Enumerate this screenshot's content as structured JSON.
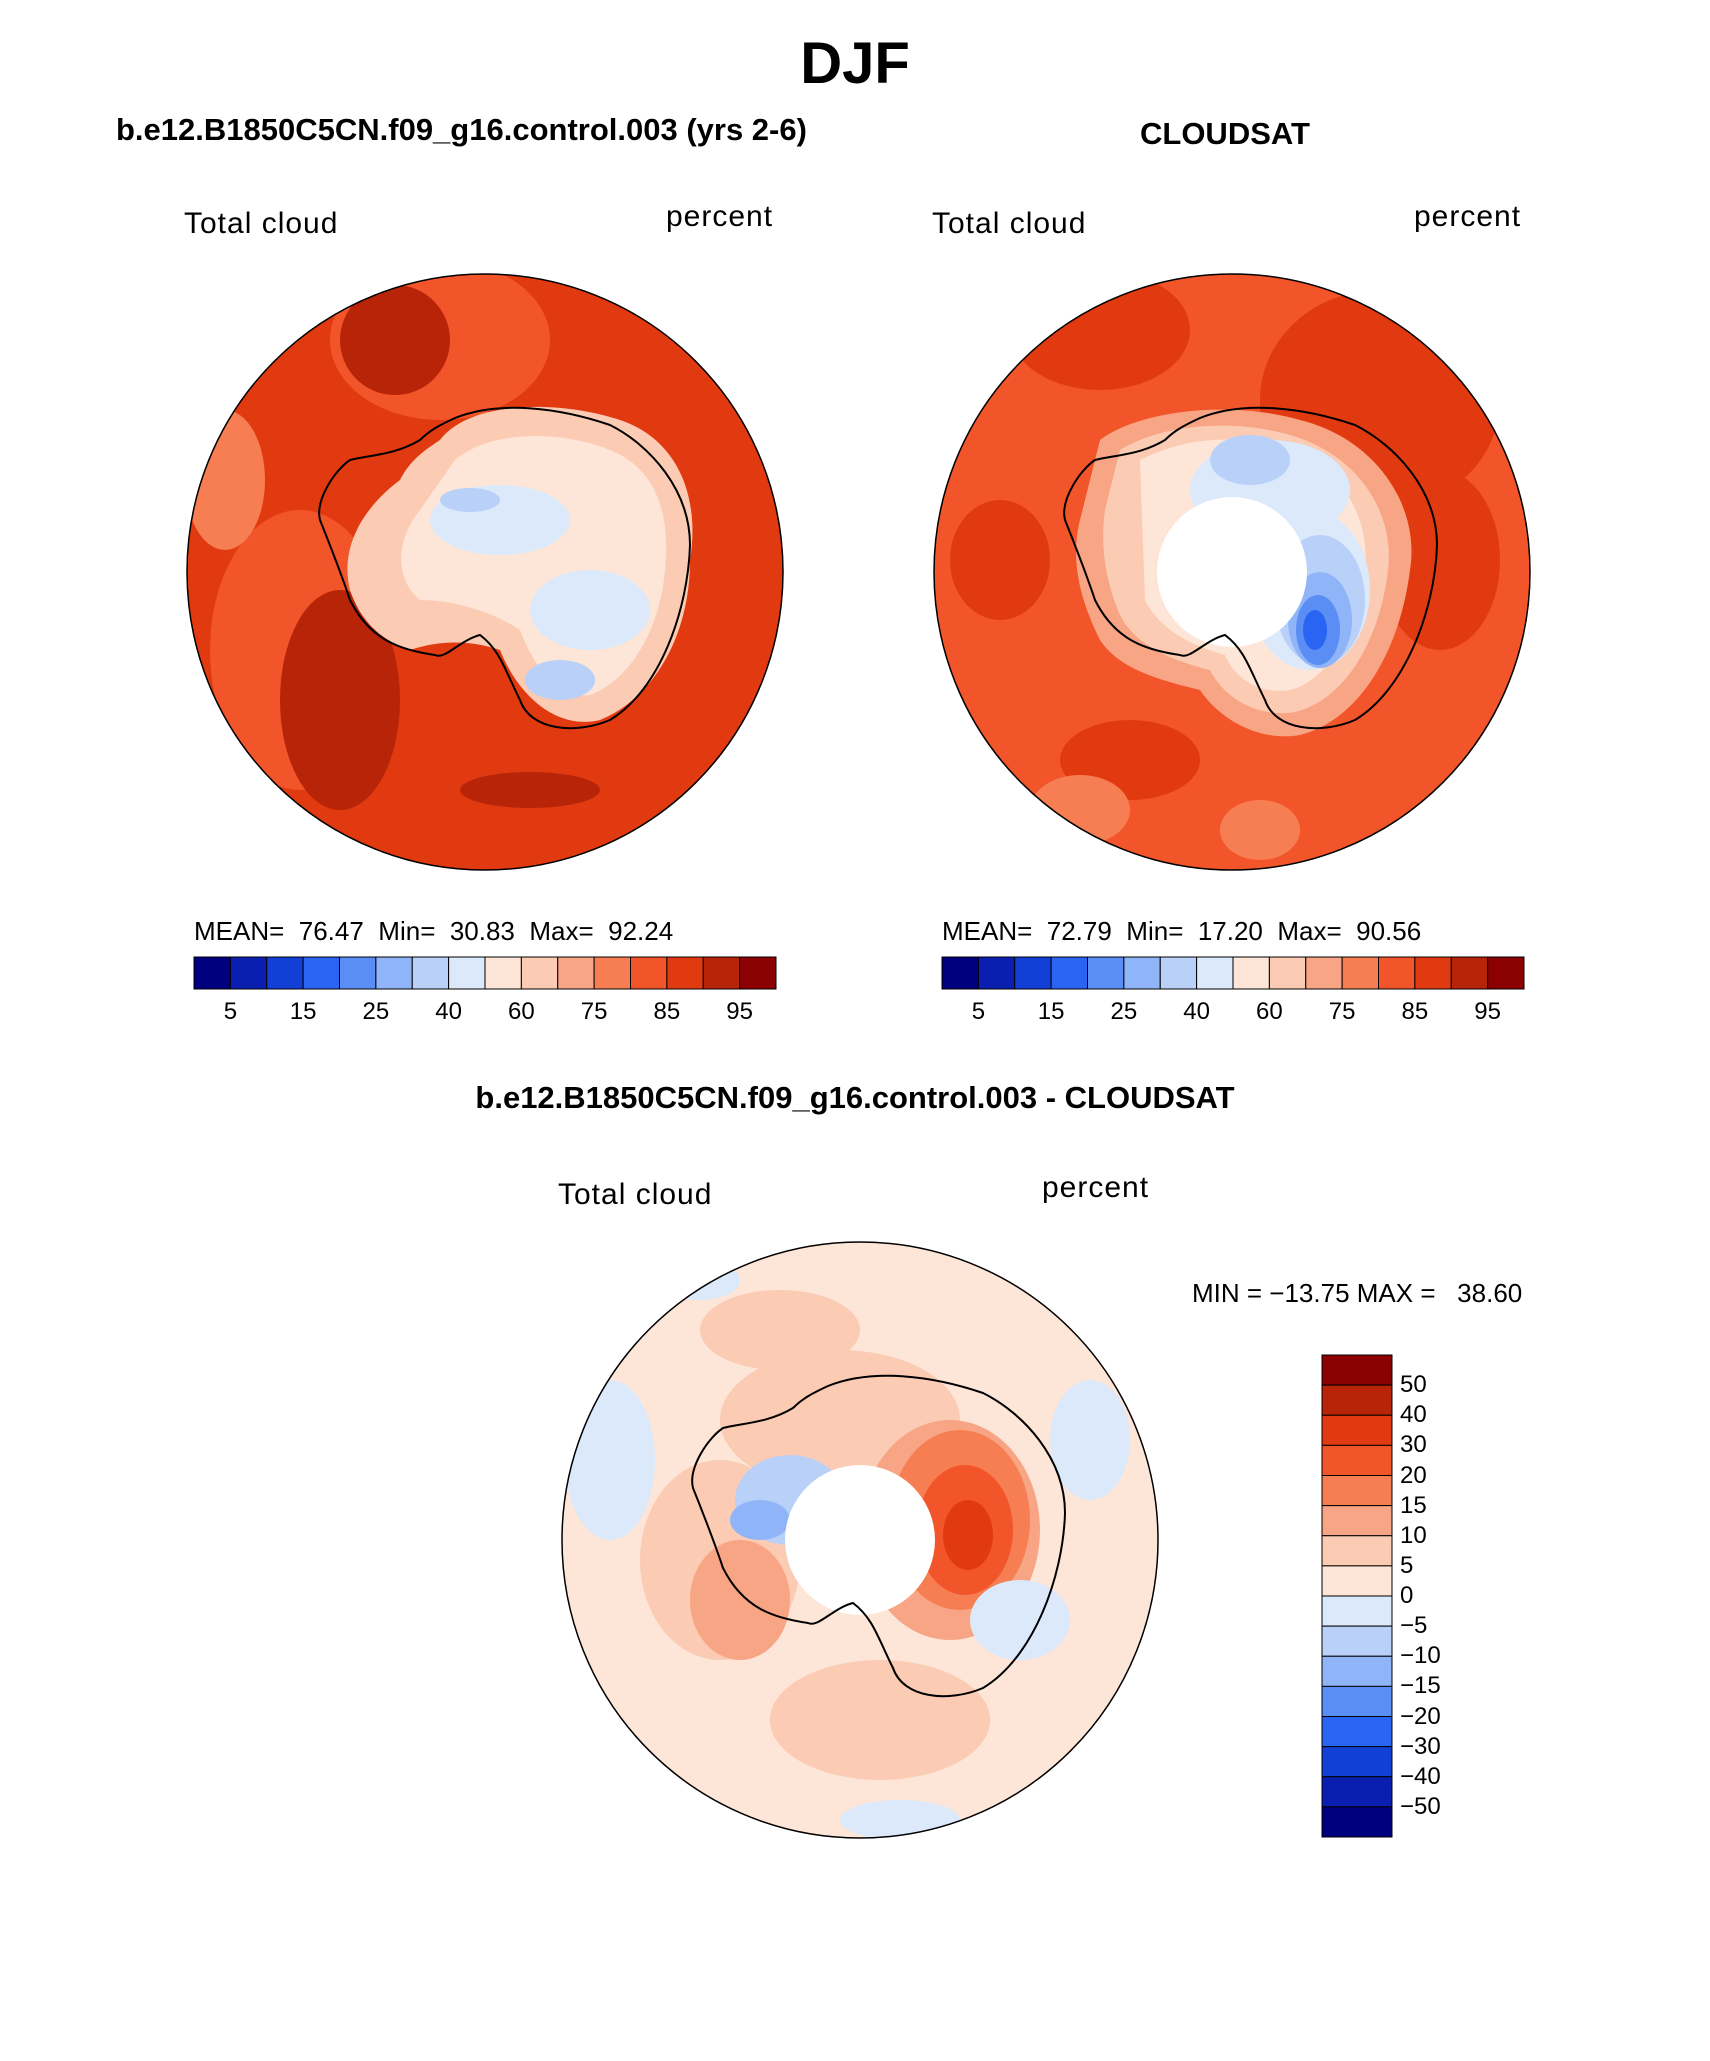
{
  "page": {
    "title": "DJF"
  },
  "panels": [
    {
      "id": "model",
      "title": "b.e12.B1850C5CN.f09_g16.control.003 (yrs 2-6)",
      "left_label": "Total cloud",
      "right_label": "percent",
      "stats": {
        "mean_label": "MEAN=",
        "mean": "76.47",
        "min_label": "Min=",
        "min": "30.83",
        "max_label": "Max=",
        "max": "92.24"
      },
      "hole": false
    },
    {
      "id": "obs",
      "title": "CLOUDSAT",
      "left_label": "Total cloud",
      "right_label": "percent",
      "stats": {
        "mean_label": "MEAN=",
        "mean": "72.79",
        "min_label": "Min=",
        "min": "17.20",
        "max_label": "Max=",
        "max": "90.56"
      },
      "hole": true
    },
    {
      "id": "diff",
      "title": "b.e12.B1850C5CN.f09_g16.control.003 - CLOUDSAT",
      "left_label": "Total cloud",
      "right_label": "percent",
      "stats_text": "MIN = −13.75 MAX =   38.60",
      "hole": true
    }
  ],
  "abs_colorbar": {
    "colors": [
      "#00007f",
      "#0a1fb0",
      "#1240d6",
      "#2a64f2",
      "#5a8ef5",
      "#8fb4f7",
      "#b9d0f8",
      "#dbe9fb",
      "#fde6d8",
      "#fbcbb3",
      "#f8a585",
      "#f67e52",
      "#f2552a",
      "#e23a10",
      "#b82408",
      "#8b0000"
    ],
    "tick_labels": [
      "5",
      "15",
      "25",
      "40",
      "60",
      "75",
      "85",
      "95"
    ]
  },
  "diff_colorbar": {
    "colors": [
      "#8b0000",
      "#b82408",
      "#e23a10",
      "#f2552a",
      "#f67e52",
      "#f8a585",
      "#fbcbb3",
      "#fde6d8",
      "#dbe9fb",
      "#b9d0f8",
      "#8fb4f7",
      "#5a8ef5",
      "#2a64f2",
      "#1240d6",
      "#0a1fb0",
      "#00007f"
    ],
    "tick_labels": [
      "50",
      "40",
      "30",
      "20",
      "15",
      "10",
      "5",
      "0",
      "−5",
      "−10",
      "−15",
      "−20",
      "−30",
      "−40",
      "−50"
    ]
  }
}
